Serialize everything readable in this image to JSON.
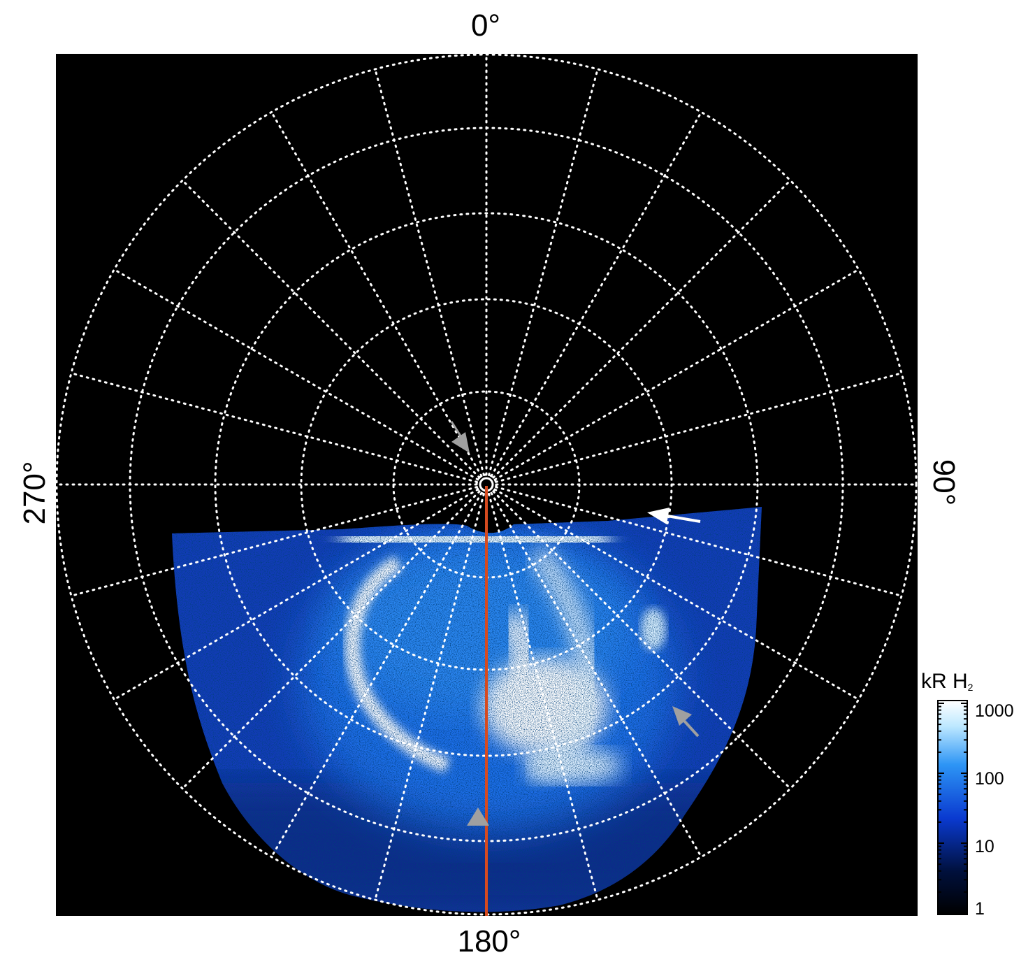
{
  "figure": {
    "axis_labels": {
      "top": "0°",
      "right": "90°",
      "bottom": "180°",
      "left": "270°"
    },
    "colorbar": {
      "title": "kR H",
      "title_subscript": "2",
      "scale": "log",
      "ticks": [
        "1000",
        "100",
        "10",
        "1"
      ],
      "colors": [
        "#000000",
        "#00103c",
        "#0a3ad0",
        "#2d95f5",
        "#bde8ff",
        "#ffffff"
      ]
    },
    "colors": {
      "background": "#000000",
      "grid": "#ffffff",
      "meridian_line": "#d64a1f",
      "arrow_white": "#ffffff",
      "arrow_grey": "#a0a0a0"
    },
    "annotations": [
      {
        "name": "arrow-grey-upper",
        "color": "grey"
      },
      {
        "name": "arrow-white-right",
        "color": "white"
      },
      {
        "name": "arrow-grey-right",
        "color": "grey"
      },
      {
        "name": "triangle-grey-bottom",
        "color": "grey"
      }
    ]
  }
}
